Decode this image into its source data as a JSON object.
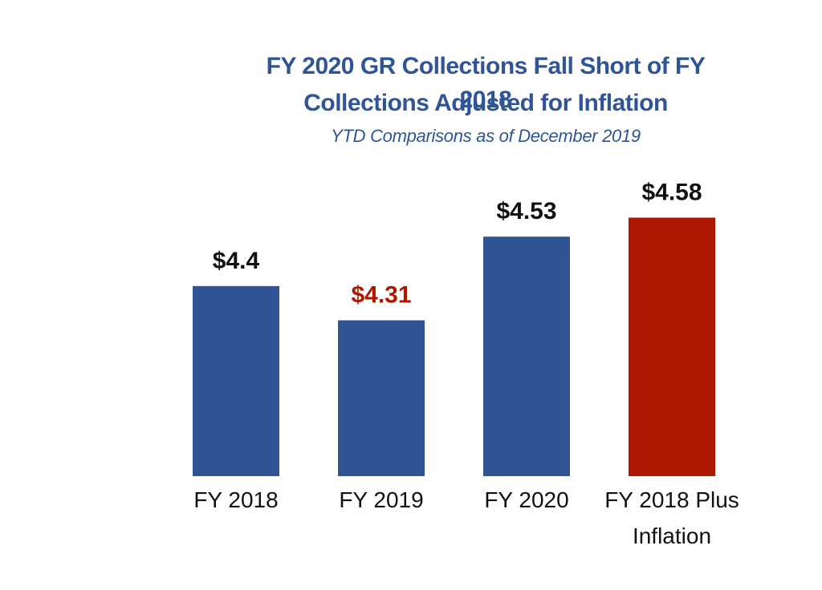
{
  "chart_data": {
    "type": "bar",
    "title": [
      "FY 2020 GR Collections Fall Short of FY 2018",
      "Collections Adjusted for Inflation"
    ],
    "subtitle": "YTD Comparisons as of December 2019",
    "categories": [
      [
        "FY 2018"
      ],
      [
        "FY 2019"
      ],
      [
        "FY 2020"
      ],
      [
        "FY 2018 Plus",
        "Inflation"
      ]
    ],
    "values": [
      4.4,
      4.31,
      4.53,
      4.58
    ],
    "value_labels": [
      "$4.4",
      "$4.31",
      "$4.53",
      "$4.58"
    ],
    "bar_colors": [
      "#2f5597",
      "#2f5597",
      "#2f5597",
      "#ae1700"
    ],
    "value_label_colors": [
      "#111111",
      "#ae1700",
      "#111111",
      "#111111"
    ],
    "ylim": [
      3.9,
      4.6
    ],
    "grid": false,
    "legend": false
  }
}
